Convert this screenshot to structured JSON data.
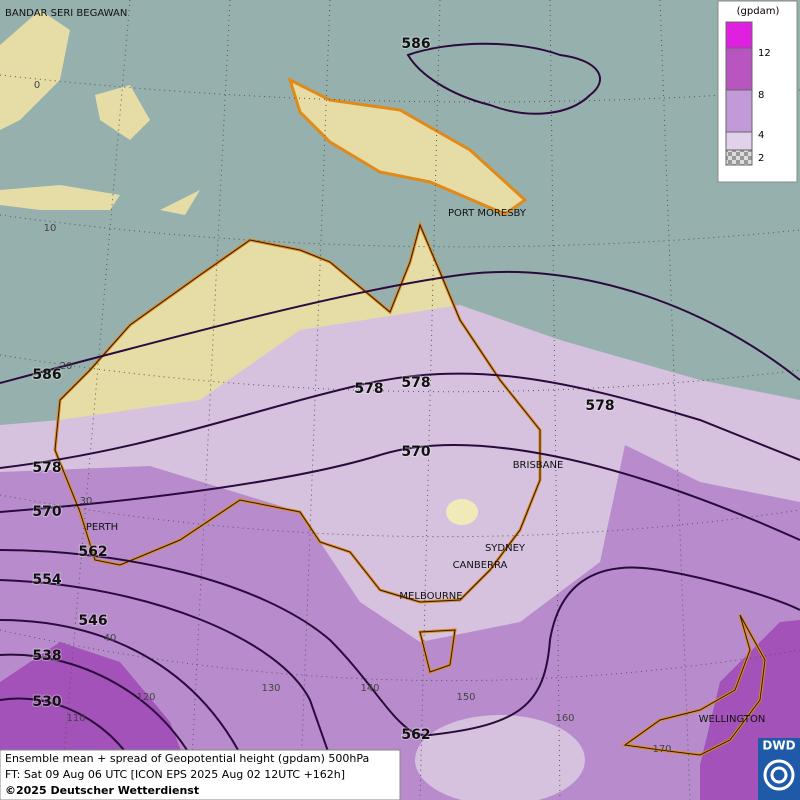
{
  "map": {
    "places": [
      "BANDAR SERI BEGAWAN",
      "PORT MORESBY",
      "BRISBANE",
      "SYDNEY",
      "CANBERRA",
      "MELBOURNE",
      "PERTH",
      "WELLINGTON"
    ],
    "contour_labels": [
      586,
      586,
      578,
      578,
      578,
      578,
      570,
      570,
      562,
      562,
      554,
      546,
      538,
      530
    ],
    "grid_labels": [
      0,
      10,
      20,
      30,
      40,
      110,
      120,
      130,
      140,
      150,
      160,
      170
    ]
  },
  "legend": {
    "title": "(gpdam)",
    "ticks": [
      12,
      8,
      4,
      2
    ]
  },
  "footer": {
    "lines": [
      "Ensemble mean + spread of Geopotential height (gpdam) 500hPa",
      "FT: Sat 09 Aug 06 UTC [ICON EPS 2025 Aug 02 12UTC +162h]",
      "©2025 Deutscher Wetterdienst"
    ],
    "logo": "DWD"
  }
}
